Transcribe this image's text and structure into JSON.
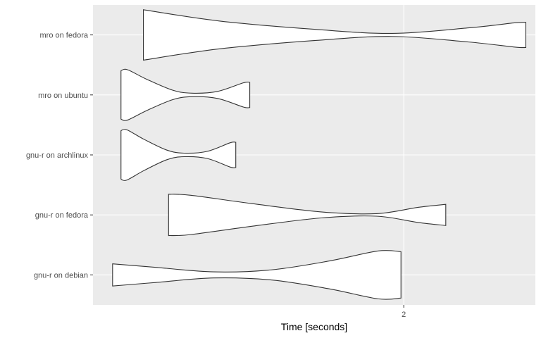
{
  "chart_data": {
    "type": "violin",
    "orientation": "horizontal",
    "title": "",
    "xlabel": "Time [seconds]",
    "ylabel": "",
    "xlim": [
      1.445,
      2.235
    ],
    "x_ticks": [
      2
    ],
    "x_tick_labels": [
      "2"
    ],
    "grid": true,
    "background": "#ebebeb",
    "gridline_color": "#ffffff",
    "violin_fill": "#ffffff",
    "violin_stroke": "#333333",
    "categories": [
      "mro on fedora",
      "mro on ubuntu",
      "gnu-r on archlinux",
      "gnu-r on fedora",
      "gnu-r on debian"
    ],
    "series": [
      {
        "category": "mro on fedora",
        "min": 1.535,
        "max": 2.218,
        "profile": [
          [
            0.0,
            1.0
          ],
          [
            0.2,
            0.55
          ],
          [
            0.45,
            0.22
          ],
          [
            0.65,
            0.06
          ],
          [
            0.85,
            0.28
          ],
          [
            0.97,
            0.48
          ],
          [
            1.0,
            0.5
          ]
        ]
      },
      {
        "category": "mro on ubuntu",
        "min": 1.495,
        "max": 1.725,
        "profile": [
          [
            0.0,
            0.96
          ],
          [
            0.05,
            1.0
          ],
          [
            0.2,
            0.62
          ],
          [
            0.4,
            0.19
          ],
          [
            0.55,
            0.07
          ],
          [
            0.75,
            0.14
          ],
          [
            0.95,
            0.48
          ],
          [
            1.0,
            0.5
          ]
        ]
      },
      {
        "category": "gnu-r on archlinux",
        "min": 1.495,
        "max": 1.7,
        "profile": [
          [
            0.0,
            0.96
          ],
          [
            0.05,
            1.0
          ],
          [
            0.2,
            0.62
          ],
          [
            0.4,
            0.19
          ],
          [
            0.55,
            0.07
          ],
          [
            0.75,
            0.14
          ],
          [
            0.95,
            0.48
          ],
          [
            1.0,
            0.5
          ]
        ]
      },
      {
        "category": "gnu-r on fedora",
        "min": 1.58,
        "max": 2.075,
        "profile": [
          [
            0.0,
            0.82
          ],
          [
            0.08,
            0.78
          ],
          [
            0.3,
            0.45
          ],
          [
            0.55,
            0.12
          ],
          [
            0.75,
            0.05
          ],
          [
            0.9,
            0.3
          ],
          [
            1.0,
            0.42
          ]
        ]
      },
      {
        "category": "gnu-r on debian",
        "min": 1.48,
        "max": 1.995,
        "profile": [
          [
            0.0,
            0.44
          ],
          [
            0.15,
            0.3
          ],
          [
            0.35,
            0.12
          ],
          [
            0.55,
            0.2
          ],
          [
            0.75,
            0.55
          ],
          [
            0.92,
            0.95
          ],
          [
            1.0,
            0.92
          ]
        ]
      }
    ]
  }
}
